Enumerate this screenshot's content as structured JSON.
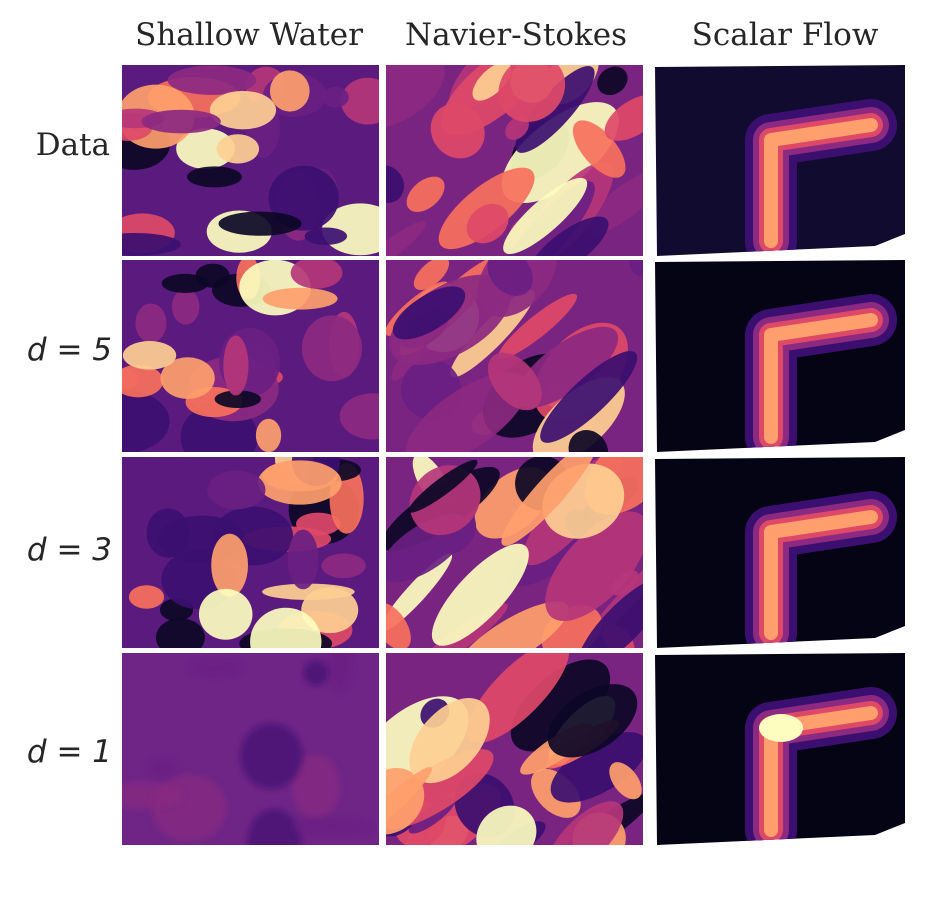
{
  "columns": [
    {
      "title": "Shallow Water"
    },
    {
      "title": "Navier-Stokes"
    },
    {
      "title": "Scalar Flow"
    }
  ],
  "rows": [
    {
      "label": "Data"
    },
    {
      "label": "d = 5"
    },
    {
      "label": "d = 3"
    },
    {
      "label": "d = 1"
    }
  ]
}
